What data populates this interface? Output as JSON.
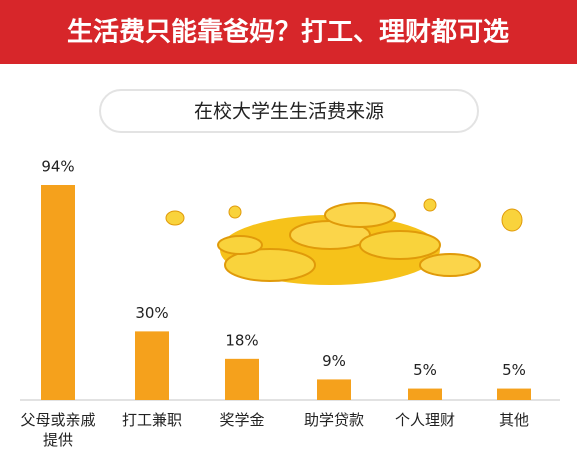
{
  "chart_data": {
    "type": "bar",
    "title": "生活费只能靠爸妈？打工、理财都可选",
    "subtitle": "在校大学生生活费来源",
    "categories": [
      "父母或亲戚提供",
      "打工兼职",
      "奖学金",
      "助学贷款",
      "个人理财",
      "其他"
    ],
    "values": [
      94,
      30,
      18,
      9,
      5,
      5
    ],
    "value_labels": [
      "94%",
      "30%",
      "18%",
      "9%",
      "5%",
      "5%"
    ],
    "color": "#f5a11c",
    "ylim": [
      0,
      100
    ]
  }
}
